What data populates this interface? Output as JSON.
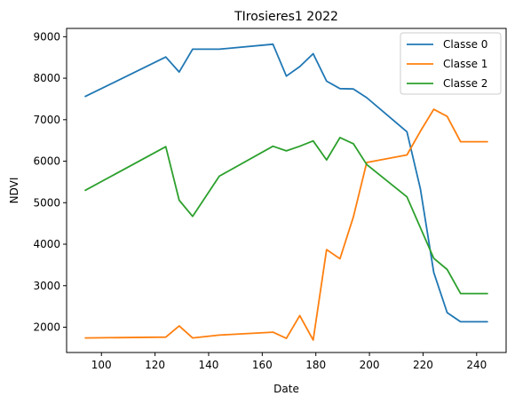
{
  "chart_data": {
    "type": "line",
    "title": "TIrosieres1 2022",
    "xlabel": "Date",
    "ylabel": "NDVI",
    "xlim": [
      87,
      251
    ],
    "ylim": [
      1390,
      9200
    ],
    "xticks": [
      100,
      120,
      140,
      160,
      180,
      200,
      220,
      240
    ],
    "yticks": [
      2000,
      3000,
      4000,
      5000,
      6000,
      7000,
      8000,
      9000
    ],
    "grid": false,
    "legend_position": "top-right",
    "series": [
      {
        "name": "Classe 0",
        "color": "#1f77b4",
        "x": [
          94,
          124,
          129,
          134,
          144,
          164,
          169,
          174,
          179,
          184,
          189,
          194,
          199,
          214,
          219,
          224,
          229,
          234,
          244
        ],
        "y": [
          7560,
          8510,
          8150,
          8700,
          8700,
          8820,
          8050,
          8280,
          8590,
          7930,
          7750,
          7740,
          7530,
          6710,
          5340,
          3320,
          2350,
          2130,
          2130
        ]
      },
      {
        "name": "Classe 1",
        "color": "#ff7f0e",
        "x": [
          94,
          124,
          129,
          134,
          144,
          164,
          169,
          174,
          179,
          184,
          189,
          194,
          199,
          214,
          219,
          224,
          229,
          234,
          244
        ],
        "y": [
          1740,
          1760,
          2030,
          1740,
          1810,
          1880,
          1730,
          2280,
          1690,
          3870,
          3650,
          4660,
          5970,
          6150,
          6720,
          7250,
          7080,
          6470,
          6470
        ]
      },
      {
        "name": "Classe 2",
        "color": "#2ca02c",
        "x": [
          94,
          124,
          129,
          134,
          144,
          164,
          169,
          174,
          179,
          184,
          189,
          194,
          199,
          214,
          219,
          224,
          229,
          234,
          244
        ],
        "y": [
          5300,
          6350,
          5060,
          4670,
          5640,
          6360,
          6250,
          6360,
          6490,
          6030,
          6570,
          6420,
          5920,
          5140,
          4400,
          3660,
          3390,
          2810,
          2810
        ]
      }
    ]
  }
}
